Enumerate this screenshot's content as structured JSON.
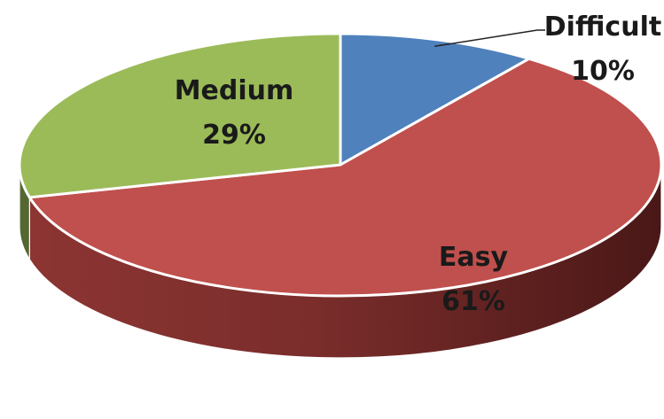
{
  "chart_data": {
    "type": "pie",
    "three_d": true,
    "title": "",
    "slices": [
      {
        "name": "Difficult",
        "value": 10,
        "label": "10%",
        "color": "#4F81BD"
      },
      {
        "name": "Easy",
        "value": 61,
        "label": "61%",
        "color": "#C0504D"
      },
      {
        "name": "Medium",
        "value": 29,
        "label": "29%",
        "color": "#9BBB59"
      }
    ],
    "legend": "none"
  }
}
